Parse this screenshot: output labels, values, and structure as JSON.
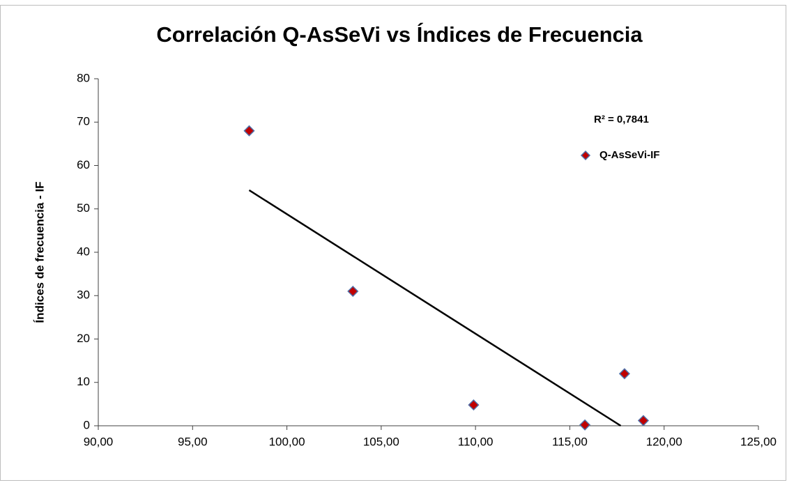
{
  "chart_data": {
    "type": "scatter",
    "title": "Correlación Q-AsSeVi vs Índices de Frecuencia",
    "y_label": "Índices de frecuencia  - IF",
    "annotation": "R² = 0,7841",
    "series": [
      {
        "name": "Q-AsSeVi-IF",
        "color": "#c00000",
        "edge_color": "#4f6fa8",
        "x": [
          98,
          103.5,
          109.9,
          115.8,
          117.9,
          118.9
        ],
        "values": [
          68,
          31,
          4.8,
          0.2,
          12,
          1.2
        ]
      }
    ],
    "trendline": {
      "x": [
        98,
        117.7
      ],
      "y": [
        54.3,
        0
      ],
      "color": "#000000"
    },
    "xlim": [
      90,
      125
    ],
    "xticks": [
      {
        "value": 90,
        "label": "90,00"
      },
      {
        "value": 95,
        "label": "95,00"
      },
      {
        "value": 100,
        "label": "100,00"
      },
      {
        "value": 105,
        "label": "105,00"
      },
      {
        "value": 110,
        "label": "110,00"
      },
      {
        "value": 115,
        "label": "115,00"
      },
      {
        "value": 120,
        "label": "120,00"
      },
      {
        "value": 125,
        "label": "125,00"
      }
    ],
    "ylim": [
      0,
      80
    ],
    "yticks": [
      0,
      10,
      20,
      30,
      40,
      50,
      60,
      70,
      80
    ],
    "grid": false,
    "legend": "upper right"
  }
}
